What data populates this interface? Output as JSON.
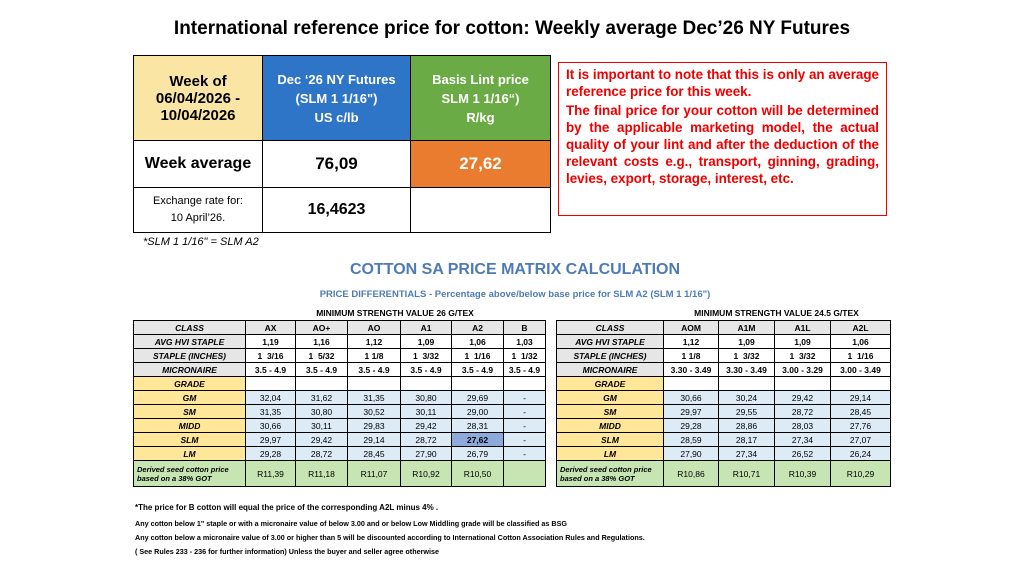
{
  "title": "International reference price for cotton: Weekly average Dec’26 NY Futures",
  "summary": {
    "header": [
      [
        "Week of",
        "06/04/2026 -",
        "10/04/2026"
      ],
      [
        "Dec ‘26 NY Futures",
        "(SLM 1 1/16\")",
        "US c/lb"
      ],
      [
        "Basis Lint price",
        "SLM 1 1/16“)",
        "R/kg"
      ]
    ],
    "week_average": {
      "label": "Week average",
      "futures": "76,09",
      "basis": "27,62"
    },
    "exchange": {
      "label": [
        "Exchange rate for:",
        "10 April’26."
      ],
      "value": "16,4623"
    },
    "footnote": "*SLM 1 1/16\" = SLM A2"
  },
  "notice": [
    "It is important to note that this is only an average reference price for this week.",
    "The final price for your cotton will be determined by the applicable marketing model, the actual quality of your lint and after the deduction of  the relevant costs e.g., transport, ginning, grading, levies, export, storage, interest, etc."
  ],
  "matrix": {
    "title": "COTTON SA PRICE MATRIX CALCULATION",
    "subtitle": "PRICE DIFFERENTIALS  -  Percentage above/below base price for SLM A2 (SLM 1 1/16\")",
    "tables": [
      {
        "strength": "MINIMUM STRENGTH VALUE 26 G/TEX",
        "rows": [
          {
            "label": [
              "CLASS"
            ],
            "cells": [
              "AX",
              "AO+",
              "AO",
              "A1",
              "A2",
              "B"
            ]
          },
          {
            "label": [
              "AVG HVI STAPLE"
            ],
            "cells": [
              "1,19",
              "1,16",
              "1,12",
              "1,09",
              "1,06",
              "1,03"
            ]
          },
          {
            "label": [
              "STAPLE (INCHES)"
            ],
            "cells": [
              "1  3/16",
              "1  5/32",
              "1 1/8",
              "1  3/32",
              "1  1/16",
              "1  1/32"
            ]
          },
          {
            "label": [
              "MICRONAIRE"
            ],
            "cells": [
              "3.5 - 4.9",
              "3.5 - 4.9",
              "3.5 - 4.9",
              "3.5 - 4.9",
              "3.5 - 4.9",
              "3.5 - 4.9"
            ]
          },
          {
            "label": [
              "GRADE"
            ],
            "cells": []
          },
          {
            "label": [
              "GM"
            ],
            "cells": [
              "32,04",
              "31,62",
              "31,35",
              "30,80",
              "29,69",
              "-"
            ]
          },
          {
            "label": [
              "SM"
            ],
            "cells": [
              "31,35",
              "30,80",
              "30,52",
              "30,11",
              "29,00",
              "-"
            ]
          },
          {
            "label": [
              "MIDD"
            ],
            "cells": [
              "30,66",
              "30,11",
              "29,83",
              "29,42",
              "28,31",
              "-"
            ]
          },
          {
            "label": [
              "SLM"
            ],
            "cells": [
              "29,97",
              "29,42",
              "29,14",
              "28,72",
              "27,62",
              "-"
            ]
          },
          {
            "label": [
              "LM"
            ],
            "cells": [
              "29,28",
              "28,72",
              "28,45",
              "27,90",
              "26,79",
              "-"
            ]
          },
          {
            "label": [
              "Derived seed cotton price",
              "based on a 38% GOT"
            ],
            "cells": [
              "R11,39",
              "R11,18",
              "R11,07",
              "R10,92",
              "R10,50"
            ]
          }
        ]
      },
      {
        "strength": "MINIMUM STRENGTH VALUE 24.5 G/TEX",
        "rows": [
          {
            "label": [
              "CLASS"
            ],
            "cells": [
              "AOM",
              "A1M",
              "A1L",
              "A2L"
            ]
          },
          {
            "label": [
              "AVG HVI STAPLE"
            ],
            "cells": [
              "1,12",
              "1,09",
              "1,09",
              "1,06"
            ]
          },
          {
            "label": [
              "STAPLE (INCHES)"
            ],
            "cells": [
              "1 1/8",
              "1  3/32",
              "1  3/32",
              "1  1/16"
            ]
          },
          {
            "label": [
              "MICRONAIRE"
            ],
            "cells": [
              "3.30 - 3.49",
              "3.30 - 3.49",
              "3.00 - 3.29",
              "3.00 - 3.49"
            ]
          },
          {
            "label": [
              "GRADE"
            ],
            "cells": []
          },
          {
            "label": [
              "GM"
            ],
            "cells": [
              "30,66",
              "30,24",
              "29,42",
              "29,14"
            ]
          },
          {
            "label": [
              "SM"
            ],
            "cells": [
              "29,97",
              "29,55",
              "28,72",
              "28,45"
            ]
          },
          {
            "label": [
              "MIDD"
            ],
            "cells": [
              "29,28",
              "28,86",
              "28,03",
              "27,76"
            ]
          },
          {
            "label": [
              "SLM"
            ],
            "cells": [
              "28,59",
              "28,17",
              "27,34",
              "27,07"
            ]
          },
          {
            "label": [
              "LM"
            ],
            "cells": [
              "27,90",
              "27,34",
              "26,52",
              "26,24"
            ]
          },
          {
            "label": [
              "Derived seed cotton price",
              "based on a 38% GOT"
            ],
            "cells": [
              "R10,86",
              "R10,71",
              "R10,39",
              "R10,29"
            ]
          }
        ]
      }
    ]
  },
  "notes": [
    "*The price for B cotton will equal the price of the corresponding A2L minus 4% .",
    "Any cotton below 1\" staple or with a micronaire value of below 3.00 and or below Low Middling grade will be classified as BSG",
    "Any cotton below a micronaire value of 3.00 or higher than 5 will be discounted according to International Cotton Association Rules and Regulations.",
    "( See Rules 233 - 236 for further information) Unless the buyer and seller agree otherwise"
  ]
}
